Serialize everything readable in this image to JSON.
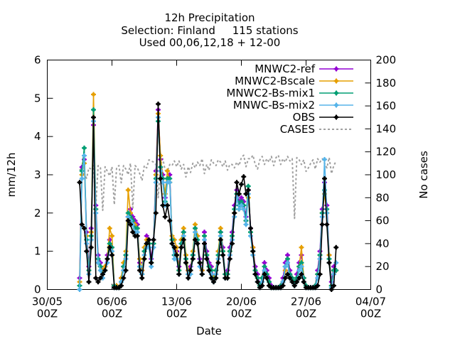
{
  "chart_data": {
    "type": "line",
    "title_lines": [
      "12h Precipitation",
      "Selection: Finland     115 stations",
      "Used 00,06,12,18 + 12-00"
    ],
    "xlabel": "Date",
    "ylabel": "mm/12h",
    "y2label": "No cases",
    "xlim": [
      "2023-05-30T00Z",
      "2023-07-04T00Z"
    ],
    "ylim": [
      0,
      6
    ],
    "y2lim": [
      0,
      200
    ],
    "xticks": [
      {
        "line1": "30/05",
        "line2": "00Z",
        "day": 0
      },
      {
        "line1": "06/06",
        "line2": "00Z",
        "day": 7
      },
      {
        "line1": "13/06",
        "line2": "00Z",
        "day": 14
      },
      {
        "line1": "20/06",
        "line2": "00Z",
        "day": 21
      },
      {
        "line1": "27/06",
        "line2": "00Z",
        "day": 28
      },
      {
        "line1": "04/07",
        "line2": "00Z",
        "day": 35
      }
    ],
    "yticks": [
      "0",
      "1",
      "2",
      "3",
      "4",
      "5",
      "6"
    ],
    "y2ticks": [
      "0",
      "20",
      "40",
      "60",
      "80",
      "100",
      "120",
      "140",
      "160",
      "180",
      "200"
    ],
    "legend_position": "top-right",
    "x_start_date": "2023-06-02T12Z",
    "x_step_hours": 6,
    "series": [
      {
        "name": "MNWC2-ref",
        "color": "#9400d3",
        "axis": "y1",
        "values": [
          0.3,
          3.2,
          3.4,
          1.5,
          0.6,
          1.6,
          4.3,
          2.2,
          0.9,
          0.7,
          0.5,
          0.6,
          0.9,
          1.3,
          1.1,
          0.1,
          0.1,
          0.05,
          0.3,
          0.6,
          0.9,
          1.9,
          2.1,
          1.9,
          1.8,
          1.7,
          0.7,
          0.5,
          1.0,
          1.4,
          1.3,
          0.8,
          1.3,
          3.1,
          4.7,
          3.4,
          3.0,
          2.4,
          2.9,
          3.0,
          1.3,
          0.9,
          1.0,
          0.6,
          1.3,
          1.5,
          0.8,
          0.5,
          0.6,
          0.9,
          1.6,
          1.4,
          0.8,
          0.5,
          1.5,
          1.0,
          0.7,
          0.6,
          0.3,
          0.5,
          1.0,
          1.5,
          1.1,
          0.4,
          0.5,
          1.1,
          1.5,
          2.2,
          2.6,
          2.3,
          2.4,
          2.3,
          1.9,
          2.6,
          1.6,
          1.1,
          0.6,
          0.4,
          0.1,
          0.3,
          0.7,
          0.5,
          0.3,
          0.1,
          0.05,
          0.05,
          0.05,
          0.1,
          0.3,
          0.7,
          0.9,
          0.5,
          0.3,
          0.2,
          0.4,
          0.7,
          0.9,
          0.3,
          0.1,
          0.05,
          0.05,
          0.05,
          0.1,
          0.5,
          1.0,
          2.1,
          2.8,
          2.2,
          0.9,
          0.2,
          0.6,
          0.5
        ]
      },
      {
        "name": "MNWC2-Bscale",
        "color": "#e69f00",
        "axis": "y1",
        "values": [
          0.2,
          3.0,
          3.3,
          1.4,
          0.5,
          1.5,
          5.1,
          2.1,
          0.8,
          0.6,
          0.5,
          0.6,
          0.8,
          1.6,
          1.4,
          0.1,
          0.1,
          0.05,
          0.3,
          0.7,
          1.0,
          2.6,
          2.0,
          1.8,
          1.7,
          1.6,
          0.8,
          0.5,
          1.1,
          1.3,
          1.2,
          0.7,
          1.2,
          3.0,
          4.6,
          3.5,
          2.9,
          2.5,
          3.1,
          2.8,
          1.4,
          1.3,
          1.1,
          0.5,
          1.3,
          1.6,
          0.9,
          0.5,
          0.5,
          1.0,
          1.7,
          1.4,
          0.7,
          0.5,
          1.4,
          0.9,
          0.6,
          0.5,
          0.3,
          0.5,
          1.0,
          1.6,
          1.0,
          0.4,
          0.4,
          1.0,
          1.4,
          2.0,
          2.4,
          2.1,
          2.2,
          2.1,
          1.8,
          2.4,
          1.5,
          1.1,
          0.5,
          0.3,
          0.1,
          0.3,
          0.5,
          0.4,
          0.2,
          0.05,
          0.05,
          0.05,
          0.05,
          0.1,
          0.2,
          0.5,
          0.8,
          0.4,
          0.3,
          0.2,
          0.3,
          0.6,
          1.1,
          0.3,
          0.1,
          0.05,
          0.05,
          0.05,
          0.1,
          0.4,
          0.9,
          2.0,
          2.5,
          2.0,
          0.9,
          0.1,
          0.5,
          0.5
        ]
      },
      {
        "name": "MNWC2-Bs-mix1",
        "color": "#009e73",
        "axis": "y1",
        "values": [
          0.1,
          3.1,
          3.7,
          1.3,
          0.5,
          1.4,
          4.7,
          2.1,
          0.8,
          0.6,
          0.4,
          0.5,
          0.8,
          1.2,
          1.1,
          0.1,
          0.05,
          0.05,
          0.2,
          0.6,
          0.9,
          2.0,
          1.9,
          1.8,
          1.6,
          1.6,
          0.6,
          0.4,
          1.0,
          1.2,
          1.2,
          0.7,
          1.2,
          2.9,
          4.4,
          3.2,
          2.9,
          2.3,
          2.9,
          2.9,
          1.3,
          0.9,
          0.9,
          0.5,
          1.2,
          1.5,
          0.8,
          0.4,
          0.5,
          0.9,
          1.6,
          1.3,
          0.7,
          0.4,
          1.4,
          0.9,
          0.6,
          0.5,
          0.2,
          0.5,
          0.9,
          1.5,
          1.0,
          0.4,
          0.4,
          1.0,
          1.4,
          2.1,
          2.5,
          2.2,
          2.3,
          2.2,
          1.8,
          2.7,
          1.5,
          1.0,
          0.5,
          0.3,
          0.1,
          0.3,
          0.6,
          0.4,
          0.2,
          0.05,
          0.05,
          0.05,
          0.05,
          0.1,
          0.2,
          0.6,
          0.8,
          0.4,
          0.3,
          0.2,
          0.3,
          0.6,
          0.7,
          0.3,
          0.1,
          0.05,
          0.05,
          0.05,
          0.1,
          0.4,
          0.9,
          2.0,
          2.6,
          2.1,
          0.8,
          0.1,
          0.5,
          0.5
        ]
      },
      {
        "name": "MNWC-Bs-mix2",
        "color": "#56b4e9",
        "axis": "y1",
        "values": [
          0.0,
          2.9,
          3.5,
          1.2,
          0.4,
          1.3,
          4.4,
          2.0,
          0.7,
          0.5,
          0.3,
          0.5,
          0.7,
          1.1,
          1.0,
          0.05,
          0.05,
          0.05,
          0.2,
          0.5,
          0.8,
          1.9,
          1.8,
          1.7,
          1.5,
          1.5,
          0.6,
          0.4,
          0.9,
          1.1,
          1.1,
          0.6,
          1.1,
          2.8,
          4.5,
          3.1,
          2.8,
          2.2,
          2.8,
          2.8,
          1.2,
          0.8,
          0.8,
          0.4,
          1.1,
          1.4,
          0.7,
          0.4,
          0.4,
          0.8,
          1.5,
          1.2,
          0.6,
          0.4,
          1.3,
          0.8,
          0.5,
          0.4,
          0.2,
          0.4,
          0.8,
          1.4,
          0.9,
          0.3,
          0.3,
          0.9,
          1.3,
          1.9,
          2.4,
          2.1,
          2.2,
          2.1,
          1.7,
          2.5,
          1.4,
          0.9,
          0.4,
          0.2,
          0.05,
          0.2,
          0.5,
          0.3,
          0.1,
          0.05,
          0.05,
          0.05,
          0.05,
          0.05,
          0.2,
          0.6,
          0.7,
          0.3,
          0.2,
          0.1,
          0.2,
          0.5,
          0.6,
          0.2,
          0.05,
          0.05,
          0.05,
          0.05,
          0.05,
          0.3,
          0.8,
          1.9,
          3.4,
          2.0,
          0.7,
          0.05,
          0.4,
          0.7
        ]
      },
      {
        "name": "OBS",
        "color": "#000000",
        "axis": "y1",
        "values": [
          2.8,
          1.7,
          1.6,
          1.0,
          0.2,
          1.1,
          4.5,
          0.3,
          0.2,
          0.3,
          0.4,
          0.5,
          0.8,
          1.1,
          0.9,
          0.05,
          0.05,
          0.05,
          0.1,
          0.3,
          0.5,
          1.8,
          1.7,
          1.5,
          1.4,
          1.4,
          0.5,
          0.3,
          0.8,
          1.2,
          1.3,
          0.7,
          1.3,
          2.0,
          4.85,
          2.9,
          2.2,
          1.9,
          2.2,
          1.8,
          1.2,
          1.1,
          0.9,
          0.4,
          1.1,
          1.3,
          0.7,
          0.3,
          0.5,
          0.8,
          1.3,
          1.2,
          0.7,
          0.4,
          1.2,
          0.8,
          0.5,
          0.3,
          0.2,
          0.3,
          0.7,
          1.3,
          0.9,
          0.3,
          0.3,
          0.8,
          1.2,
          2.0,
          2.8,
          2.5,
          2.75,
          2.95,
          2.5,
          2.6,
          1.6,
          1.0,
          0.4,
          0.2,
          0.05,
          0.1,
          0.4,
          0.3,
          0.1,
          0.05,
          0.05,
          0.05,
          0.05,
          0.05,
          0.1,
          0.3,
          0.4,
          0.3,
          0.2,
          0.1,
          0.2,
          0.3,
          0.4,
          0.2,
          0.05,
          0.05,
          0.05,
          0.05,
          0.05,
          0.1,
          0.4,
          1.7,
          2.9,
          1.7,
          0.7,
          0.0,
          0.1,
          1.1
        ]
      },
      {
        "name": "CASES",
        "color": "#a0a0a0",
        "axis": "y2",
        "dashed": true,
        "values": [
          104,
          106,
          100,
          97,
          106,
          105,
          108,
          73,
          108,
          106,
          69,
          107,
          103,
          99,
          107,
          74,
          106,
          108,
          93,
          108,
          105,
          100,
          110,
          71,
          108,
          106,
          101,
          95,
          108,
          106,
          113,
          112,
          111,
          109,
          80,
          108,
          114,
          104,
          103,
          109,
          108,
          112,
          107,
          112,
          105,
          109,
          98,
          107,
          102,
          110,
          106,
          111,
          108,
          114,
          101,
          109,
          104,
          113,
          110,
          108,
          113,
          111,
          107,
          112,
          104,
          109,
          109,
          106,
          111,
          108,
          115,
          117,
          107,
          114,
          114,
          117,
          109,
          105,
          113,
          116,
          109,
          114,
          111,
          116,
          108,
          115,
          117,
          109,
          114,
          111,
          116,
          112,
          114,
          62,
          115,
          113,
          109,
          113,
          103,
          106,
          110,
          113,
          105,
          114,
          111,
          114,
          110,
          106,
          115,
          101,
          108,
          112
        ]
      }
    ]
  }
}
